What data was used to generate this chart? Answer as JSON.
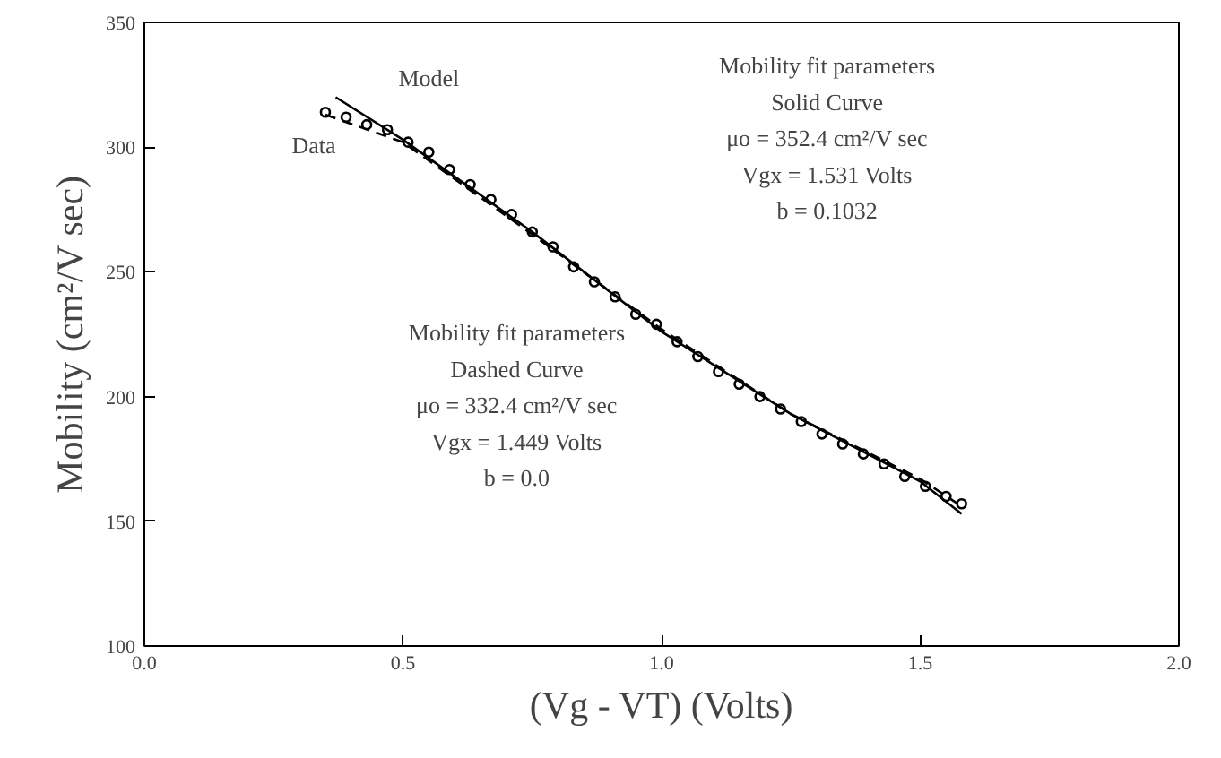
{
  "chart_data": {
    "type": "scatter",
    "xlabel": "(Vg - VT) (Volts)",
    "ylabel": "Mobility (cm²/V sec)",
    "xlim": [
      0,
      2
    ],
    "ylim": [
      100,
      350
    ],
    "xticks": [
      {
        "value": 0,
        "label": "0.0"
      },
      {
        "value": 0.5,
        "label": "0.5"
      },
      {
        "value": 1,
        "label": "1.0"
      },
      {
        "value": 1.5,
        "label": "1.5"
      },
      {
        "value": 2,
        "label": "2.0"
      }
    ],
    "yticks": [
      100,
      150,
      200,
      250,
      300,
      350
    ],
    "grid": false,
    "series": [
      {
        "name": "Data",
        "marker": "circle",
        "color": "#000000",
        "x": [
          0.35,
          0.39,
          0.43,
          0.47,
          0.51,
          0.55,
          0.59,
          0.63,
          0.67,
          0.71,
          0.75,
          0.79,
          0.83,
          0.87,
          0.91,
          0.95,
          0.99,
          1.03,
          1.07,
          1.11,
          1.15,
          1.19,
          1.23,
          1.27,
          1.31,
          1.35,
          1.39,
          1.43,
          1.47,
          1.51,
          1.55,
          1.58
        ],
        "values": [
          314,
          312,
          309,
          307,
          302,
          298,
          291,
          285,
          279,
          273,
          266,
          260,
          252,
          246,
          240,
          233,
          229,
          222,
          216,
          210,
          205,
          200,
          195,
          190,
          185,
          181,
          177,
          173,
          168,
          164,
          160,
          157
        ]
      },
      {
        "type": "line",
        "line_style": "solid",
        "color": "#000000",
        "x": [
          0.37,
          0.5,
          0.75,
          1.0,
          1.25,
          1.5,
          1.58
        ],
        "values": [
          320,
          303,
          266,
          226,
          193,
          166,
          153
        ]
      },
      {
        "type": "line",
        "line_style": "dashed",
        "color": "#000000",
        "x": [
          0.35,
          0.5,
          0.75,
          1.0,
          1.25,
          1.5,
          1.58
        ],
        "values": [
          313,
          302,
          265,
          227,
          193,
          167,
          156
        ]
      }
    ],
    "annotations": [
      "Model",
      "Mobility fit parameters\nSolid Curve\nμo = 352.4 cm²/V sec\nVgx = 1.531 Volts\nb = 0.1032",
      "Mobility fit parameters\nDashed Curve\nμo = 332.4 cm²/V sec\nVgx = 1.449 Volts\nb = 0.0"
    ]
  }
}
